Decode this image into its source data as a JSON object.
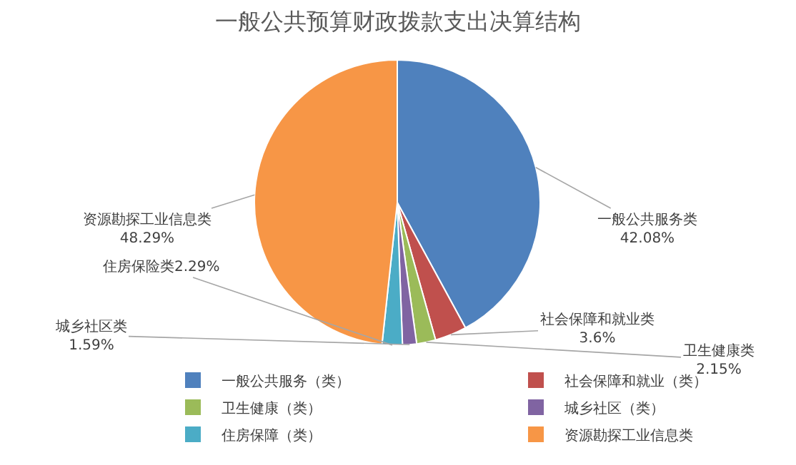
{
  "chart_data": {
    "type": "pie",
    "title": "一般公共预算财政拨款支出决算结构",
    "categories": [
      "一般公共服务（类）",
      "社会保障和就业（类）",
      "卫生健康（类）",
      "城乡社区（类）",
      "住房保障（类）",
      "资源勘探工业信息类"
    ],
    "values": [
      42.08,
      3.6,
      2.15,
      1.59,
      2.29,
      48.29
    ],
    "colors": [
      "#4f81bd",
      "#c0504d",
      "#9bbb59",
      "#8064a2",
      "#4bacc6",
      "#f79646"
    ],
    "value_labels": [
      "一般公共服务类\n42.08%",
      "社会保障和就业类\n3.6%",
      "卫生健康类\n2.15%",
      "城乡社区类\n1.59%",
      "住房保险类2.29%",
      "资源勘探工业信息类\n48.29%"
    ],
    "legend": "bottom"
  }
}
